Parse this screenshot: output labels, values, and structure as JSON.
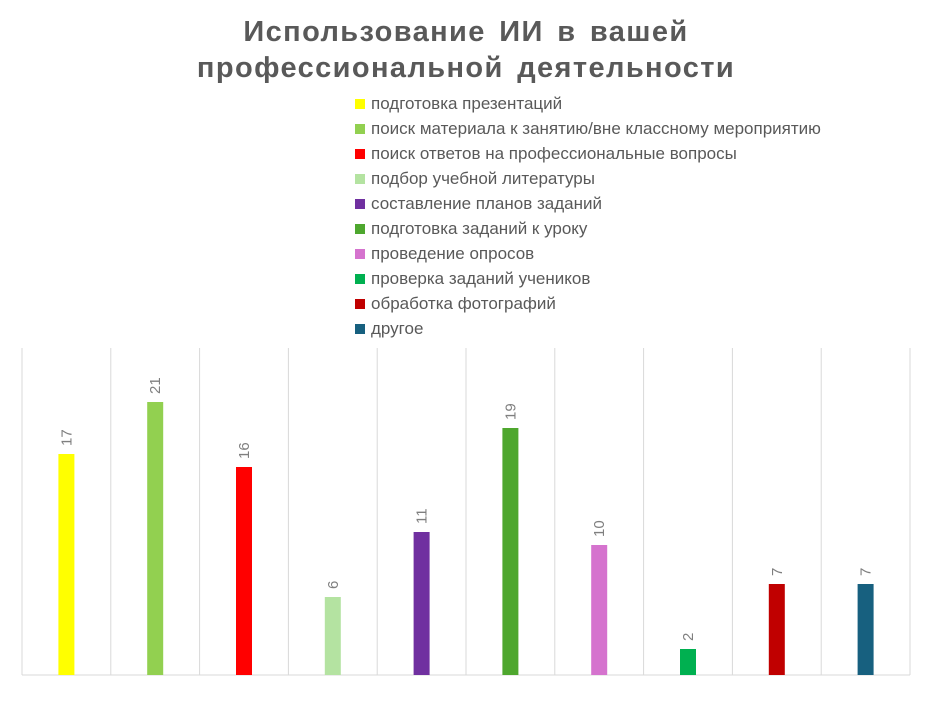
{
  "chart_data": {
    "type": "bar",
    "title_lines": [
      "Использование ИИ в вашей",
      "профессиональной деятельности"
    ],
    "categories": [
      "подготовка презентаций",
      "поиск материала к занятию/вне классному мероприятию",
      "поиск ответов на профессиональные вопросы",
      "подбор учебной литературы",
      "составление планов заданий",
      "подготовка заданий к уроку",
      "проведение опросов",
      "проверка заданий учеников",
      "обработка фотографий",
      "другое"
    ],
    "values": [
      17,
      21,
      16,
      6,
      11,
      19,
      10,
      2,
      7,
      7
    ],
    "colors": [
      "#FFFF00",
      "#92D050",
      "#FF0000",
      "#B4E3A1",
      "#7030A0",
      "#4EA72E",
      "#D573CE",
      "#00B050",
      "#C00000",
      "#17607F"
    ],
    "legend_position": "top",
    "data_labels": true,
    "grid": true,
    "ylim": [
      0,
      25
    ]
  }
}
